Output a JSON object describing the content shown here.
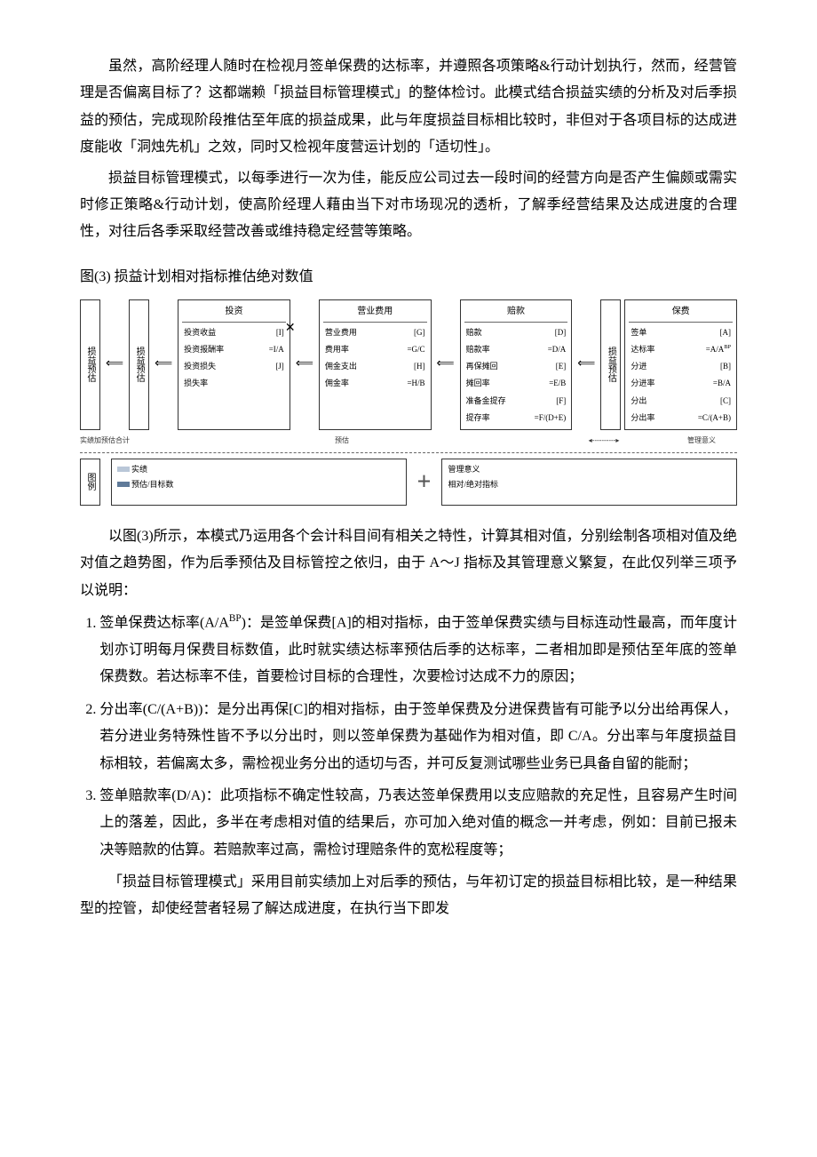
{
  "paragraphs": {
    "p1": "虽然，高阶经理人随时在检视月签单保费的达标率，并遵照各项策略&行动计划执行，然而，经营管理是否偏离目标了？这都端赖「损益目标管理模式」的整体检讨。此模式结合损益实绩的分析及对后季损益的预估，完成现阶段推估至年底的损益成果，此与年度损益目标相比较时，非但对于各项目标的达成进度能收「洞烛先机」之效，同时又检视年度营运计划的「适切性」。",
    "p2": "损益目标管理模式，以每季进行一次为佳，能反应公司过去一段时间的经营方向是否产生偏颇或需实时修正策略&行动计划，使高阶经理人藉由当下对市场现况的透析，了解季经营结果及达成进度的合理性，对往后各季采取经营改善或维持稳定经营等策略。",
    "caption": "图(3)  损益计划相对指标推估绝对数值",
    "p3": "以图(3)所示，本模式乃运用各个会计科目间有相关之特性，计算其相对值，分别绘制各项相对值及绝对值之趋势图，作为后季预估及目标管控之依归，由于 A～J 指标及其管理意义繁复，在此仅列举三项予以说明：",
    "li1_title": "签单保费达标率(A/A",
    "li1_sup": "BP",
    "li1_tail": ")：是签单保费[A]的相对指标，由于签单保费实绩与目标连动性最高，而年度计划亦订明每月保费目标数值，此时就实绩达标率预估后季的达标率，二者相加即是预估至年底的签单保费数。若达标率不佳，首要检讨目标的合理性，次要检讨达成不力的原因；",
    "li2": "分出率(C/(A+B))：是分出再保[C]的相对指标，由于签单保费及分进保费皆有可能予以分出给再保人，若分进业务特殊性皆不予以分出时，则以签单保费为基础作为相对值，即 C/A。分出率与年度损益目标相较，若偏离太多，需检视业务分出的适切与否，并可反复测试哪些业务已具备自留的能耐；",
    "li3": "签单赔款率(D/A)：此项指标不确定性较高，乃表达签单保费用以支应赔款的充足性，且容易产生时间上的落差，因此，多半在考虑相对值的结果后，亦可加入绝对值的概念一并考虑，例如：目前已报未决等赔款的估算。若赔款率过高，需检讨理赔条件的宽松程度等；",
    "p4": "「损益目标管理模式」采用目前实绩加上对后季的预估，与年初订定的损益目标相比较，是一种结果型的控管，却使经营者轻易了解达成进度，在执行当下即发"
  },
  "diagram": {
    "leftLabel1": "损益预估",
    "leftLabel2": "损益预估",
    "legendNote": "实绩加预估合计",
    "box_invest": {
      "title": "投资",
      "rows": [
        [
          "投资收益",
          "[I]"
        ],
        [
          "投资报酬率",
          "=I/A"
        ],
        [
          "投资损失",
          "[J]"
        ],
        [
          "损失率",
          ""
        ]
      ]
    },
    "box_expense": {
      "title": "营业费用",
      "rows": [
        [
          "营业费用",
          "[G]"
        ],
        [
          "费用率",
          "=G/C"
        ],
        [
          "佣金支出",
          "[H]"
        ],
        [
          "佣金率",
          "=H/B"
        ]
      ]
    },
    "box_claim": {
      "title": "赔款",
      "rows": [
        [
          "赔款",
          "[D]"
        ],
        [
          "赔款率",
          "=D/A"
        ],
        [
          "再保摊回",
          "[E]"
        ],
        [
          "摊回率",
          "=E/B"
        ],
        [
          "准备金提存",
          "[F]"
        ],
        [
          "提存率",
          "=F/(D+E)"
        ]
      ]
    },
    "box_premium": {
      "title": "保费",
      "rows": [
        [
          "签单",
          "[A]"
        ],
        [
          "达标率",
          "=A/A"
        ],
        [
          "分进",
          "[B]"
        ],
        [
          "分进率",
          "=B/A"
        ],
        [
          "分出",
          "[C]"
        ],
        [
          "分出率",
          "=C/(A+B)"
        ]
      ],
      "sup": "BP"
    },
    "row2_vlabel": "图例",
    "row2_left_a": "实绩",
    "row2_left_b": "预估/目标数",
    "row2_right_a": "管理意义",
    "row2_right_b": "相对/绝对指标",
    "midLabel": "预估",
    "rightLabel": "管理意义",
    "arrow": "⟸",
    "darrow": "◂----------▸",
    "x": "✕"
  },
  "colors": {
    "bar1": "#b9c7d8",
    "bar2": "#5f7a99"
  }
}
